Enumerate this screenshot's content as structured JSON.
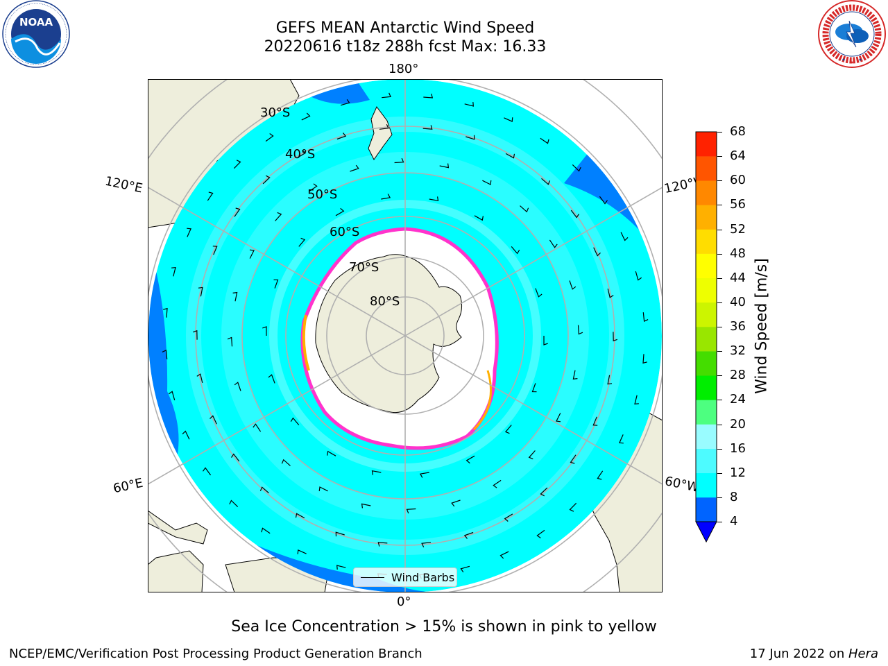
{
  "title": {
    "line1": "GEFS MEAN Antarctic Wind Speed",
    "line2": "20220616 t18z 288h fcst   Max: 16.33"
  },
  "logos": {
    "noaa_text": "NOAA",
    "noaa_ring": "NATIONAL OCEANIC AND ATMOSPHERIC ADMINISTRATION · U.S. DEPARTMENT OF COMMERCE",
    "nws_ring": "NATIONAL WEATHER SERVICE"
  },
  "map": {
    "projection": "South Polar Stereographic",
    "lat_labels": [
      "30°S",
      "40°S",
      "50°S",
      "60°S",
      "70°S",
      "80°S"
    ],
    "lon_labels": {
      "top": "180°",
      "bottom": "0°",
      "upper_left": "120°E",
      "lower_left": "60°E",
      "upper_right": "120°W",
      "lower_right": "60°W"
    },
    "legend_label": "Wind Barbs",
    "colors": {
      "land": "#eeeedc",
      "ocean_8_12": "#00ffff",
      "ocean_12_16": "#4dfbff",
      "ocean_16_20": "#99fcff",
      "ocean_4_8": "#0080ff",
      "sea_ice_edge": "#ff33cc",
      "sea_ice_inner": "#ffffff",
      "grid": "#b0b0b0"
    }
  },
  "colorbar": {
    "label": "Wind Speed [m/s]",
    "ticks": [
      "4",
      "8",
      "12",
      "16",
      "20",
      "24",
      "28",
      "32",
      "36",
      "40",
      "44",
      "48",
      "52",
      "56",
      "60",
      "64",
      "68"
    ],
    "colors": [
      "#0064ff",
      "#00ffff",
      "#4dfbff",
      "#99fcff",
      "#4dff80",
      "#00ee00",
      "#44dd00",
      "#99e600",
      "#ccf500",
      "#eeff00",
      "#ffff00",
      "#ffdd00",
      "#ffb000",
      "#ff8800",
      "#ff5500",
      "#ff2200"
    ],
    "under_color": "#0000ff"
  },
  "caption": "Sea Ice Concentration > 15% is shown in pink to yellow",
  "footer": {
    "left": "NCEP/EMC/Verification Post Processing Product Generation Branch",
    "right_date": "17 Jun 2022 on ",
    "right_host": "Hera"
  }
}
